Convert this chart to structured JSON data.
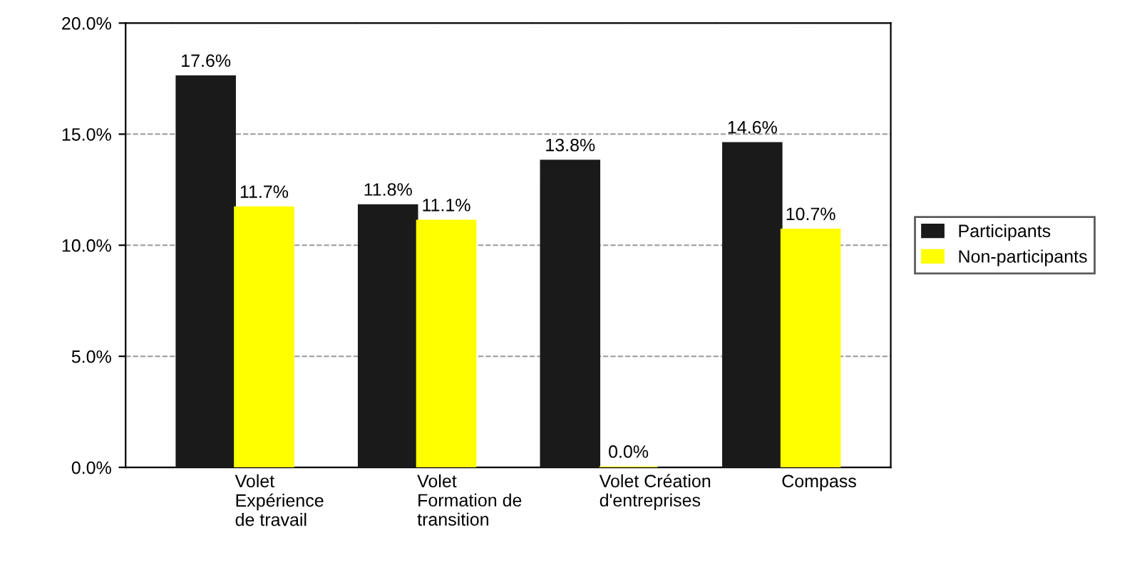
{
  "chart_data": {
    "type": "bar",
    "categories": [
      "Volet\nExpérience\nde travail",
      "Volet\nFormation de\ntransition",
      "Volet Création\nd'entreprises",
      "Compass"
    ],
    "series": [
      {
        "name": "Participants",
        "color": "#1a1a1a",
        "values": [
          17.6,
          11.8,
          13.8,
          14.6
        ],
        "value_labels": [
          "17.6%",
          "11.8%",
          "13.8%",
          "14.6%"
        ]
      },
      {
        "name": "Non-participants",
        "color": "#ffff00",
        "values": [
          11.7,
          11.1,
          0.0,
          10.7
        ],
        "value_labels": [
          "11.7%",
          "11.1%",
          "0.0%",
          "10.7%"
        ]
      }
    ],
    "ylim": [
      0,
      20
    ],
    "yticks": [
      {
        "value": 0,
        "label": "0.0%"
      },
      {
        "value": 5,
        "label": "5.0%"
      },
      {
        "value": 10,
        "label": "10.0%"
      },
      {
        "value": 15,
        "label": "15.0%"
      },
      {
        "value": 20,
        "label": "20.0%"
      }
    ],
    "grid": "y",
    "legend": "right"
  }
}
